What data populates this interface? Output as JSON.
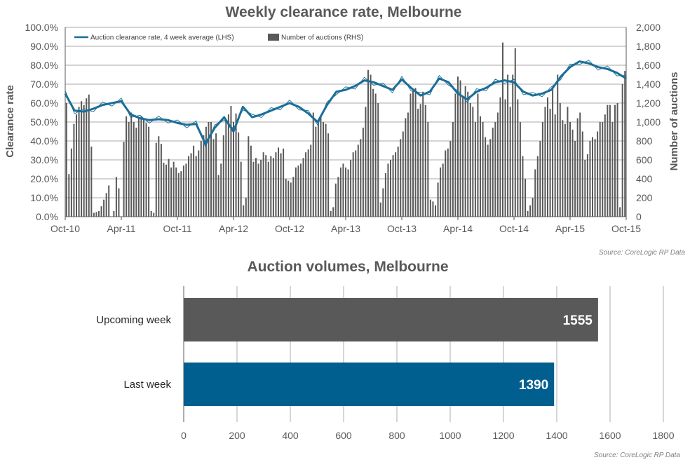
{
  "chart_data": [
    {
      "type": "line",
      "title": "Weekly clearance rate, Melbourne",
      "ylabel": "Clearance rate",
      "y2label": "Number of auctions",
      "ylim": [
        0,
        100
      ],
      "y2lim": [
        0,
        2000
      ],
      "yticks": [
        "0.0%",
        "10.0%",
        "20.0%",
        "30.0%",
        "40.0%",
        "50.0%",
        "60.0%",
        "70.0%",
        "80.0%",
        "90.0%",
        "100.0%"
      ],
      "y2ticks": [
        "0",
        "200",
        "400",
        "600",
        "800",
        "1,000",
        "1,200",
        "1,400",
        "1,600",
        "1,800",
        "2,000"
      ],
      "xticks": [
        "Oct-10",
        "Apr-11",
        "Oct-11",
        "Apr-12",
        "Oct-12",
        "Apr-13",
        "Oct-13",
        "Apr-14",
        "Oct-14",
        "Apr-15",
        "Oct-15"
      ],
      "grid": true,
      "legend_position": "top-left",
      "source": "Source: CoreLogic  RP Data",
      "colors": {
        "line": "#1b6e97",
        "bars": "#595959"
      },
      "series": [
        {
          "name": "Auction clearance rate, 4 week average (LHS)",
          "kind": "line",
          "axis": "left",
          "x": [
            "Oct-10",
            "Nov-10",
            "Dec-10",
            "Jan-11",
            "Feb-11",
            "Mar-11",
            "Apr-11",
            "May-11",
            "Jun-11",
            "Jul-11",
            "Aug-11",
            "Sep-11",
            "Oct-11",
            "Nov-11",
            "Dec-11",
            "Jan-12",
            "Feb-12",
            "Mar-12",
            "Apr-12",
            "May-12",
            "Jun-12",
            "Jul-12",
            "Aug-12",
            "Sep-12",
            "Oct-12",
            "Nov-12",
            "Dec-12",
            "Jan-13",
            "Feb-13",
            "Mar-13",
            "Apr-13",
            "May-13",
            "Jun-13",
            "Jul-13",
            "Aug-13",
            "Sep-13",
            "Oct-13",
            "Nov-13",
            "Dec-13",
            "Jan-14",
            "Feb-14",
            "Mar-14",
            "Apr-14",
            "May-14",
            "Jun-14",
            "Jul-14",
            "Aug-14",
            "Sep-14",
            "Oct-14",
            "Nov-14",
            "Dec-14",
            "Jan-15",
            "Feb-15",
            "Mar-15",
            "Apr-15",
            "May-15",
            "Jun-15",
            "Jul-15",
            "Aug-15",
            "Sep-15",
            "Oct-15"
          ],
          "values": [
            65,
            56,
            55.5,
            57,
            59,
            60,
            61,
            54,
            52,
            51,
            51.5,
            51,
            49.5,
            48.5,
            49,
            38.5,
            47,
            52.5,
            45,
            58,
            52.5,
            54,
            56,
            58,
            60,
            58,
            54.5,
            50,
            59,
            66,
            67,
            69,
            72,
            71,
            69,
            67,
            72.5,
            68,
            64,
            66,
            73,
            71,
            65,
            62,
            66,
            68,
            71,
            72,
            71,
            66,
            64,
            65,
            67,
            74,
            79,
            82,
            81,
            79,
            78,
            76,
            73
          ]
        },
        {
          "name": "Number of auctions (RHS)",
          "kind": "bar",
          "axis": "right",
          "values": [
            1200,
            450,
            720,
            980,
            1080,
            1160,
            1220,
            1180,
            1250,
            1290,
            740,
            40,
            50,
            60,
            110,
            180,
            250,
            330,
            0,
            60,
            420,
            300,
            0,
            790,
            1060,
            1000,
            1100,
            1000,
            940,
            1050,
            1060,
            1030,
            990,
            950,
            60,
            40,
            780,
            850,
            770,
            570,
            550,
            610,
            520,
            580,
            520,
            460,
            480,
            540,
            560,
            640,
            670,
            750,
            640,
            700,
            800,
            860,
            950,
            1000,
            1000,
            820,
            880,
            440,
            560,
            860,
            1020,
            1080,
            1170,
            1000,
            1090,
            890,
            580,
            120,
            200,
            850,
            750,
            580,
            620,
            560,
            600,
            680,
            650,
            580,
            640,
            620,
            680,
            730,
            670,
            720,
            400,
            380,
            360,
            420,
            520,
            540,
            560,
            620,
            680,
            710,
            760,
            1100,
            950,
            1010,
            1070,
            1000,
            980,
            880,
            60,
            100,
            350,
            420,
            520,
            560,
            520,
            500,
            600,
            680,
            700,
            760,
            820,
            940,
            1160,
            1550,
            1500,
            1350,
            1300,
            1200,
            150,
            300,
            460,
            560,
            600,
            650,
            680,
            740,
            820,
            900,
            1040,
            1100,
            1300,
            1330,
            1360,
            1140,
            1190,
            1320,
            1180,
            1000,
            180,
            160,
            120,
            360,
            520,
            560,
            700,
            720,
            800,
            1000,
            1300,
            1480,
            1440,
            1260,
            1380,
            1320,
            1200,
            1160,
            1000,
            1300,
            1060,
            1000,
            840,
            760,
            820,
            940,
            1000,
            1100,
            1260,
            1840,
            1240,
            1500,
            1160,
            1500,
            1780,
            1240,
            1000,
            640,
            400,
            60,
            120,
            200,
            500,
            640,
            800,
            1000,
            1160,
            1260,
            1140,
            1360,
            1080,
            1500,
            1200,
            1020,
            980,
            1160,
            1000,
            920,
            800,
            1040,
            1100,
            900,
            600,
            660,
            800,
            840,
            820,
            900,
            1000,
            1000,
            1080,
            1180,
            1180,
            1000,
            1180,
            1200,
            100,
            1400,
            1540
          ]
        }
      ]
    },
    {
      "type": "bar",
      "orientation": "horizontal",
      "title": "Auction volumes, Melbourne",
      "categories": [
        "Upcoming week",
        "Last week"
      ],
      "values": [
        1555,
        1390
      ],
      "value_labels": [
        "1555",
        "1390"
      ],
      "xlim": [
        0,
        1800
      ],
      "xticks": [
        "0",
        "200",
        "400",
        "600",
        "800",
        "1000",
        "1200",
        "1400",
        "1600",
        "1800"
      ],
      "grid": true,
      "source": "Source: CoreLogic  RP Data",
      "colors": {
        "Upcoming week": "#595959",
        "Last week": "#005f8f"
      }
    }
  ]
}
